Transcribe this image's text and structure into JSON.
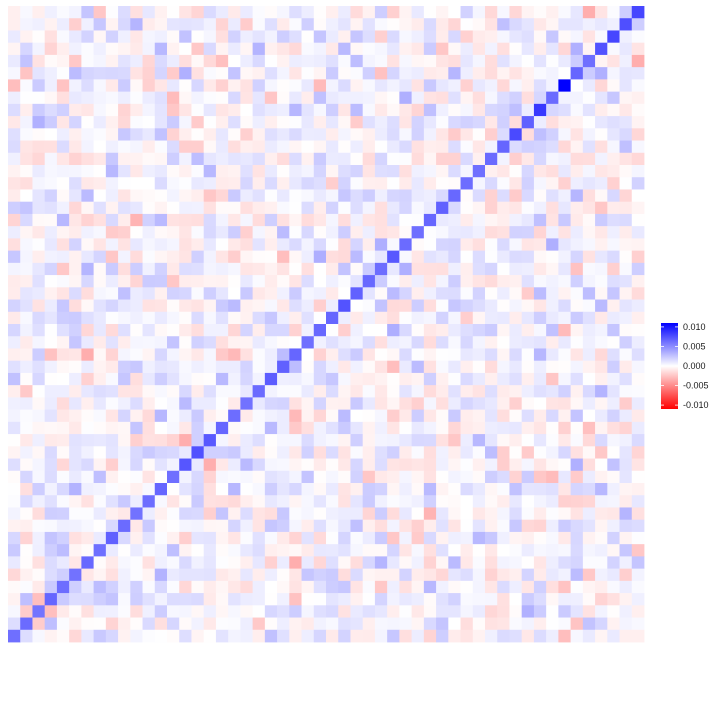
{
  "chart_data": {
    "type": "heatmap",
    "title": "",
    "xlabel": "",
    "ylabel": "",
    "grid": false,
    "rows": 52,
    "cols": 52,
    "value_range": [
      -0.011,
      0.011
    ],
    "diagonal": {
      "typical_value": 0.0062,
      "values": [
        0.0062,
        0.0064,
        0.006,
        0.0066,
        0.0063,
        0.0061,
        0.0065,
        0.0062,
        0.0068,
        0.0064,
        0.0061,
        0.0063,
        0.0066,
        0.0062,
        0.0073,
        0.0075,
        0.0072,
        0.0066,
        0.0063,
        0.0061,
        0.0064,
        0.007,
        0.0068,
        0.0066,
        0.0062,
        0.0065,
        0.0066,
        0.0074,
        0.0068,
        0.0065,
        0.0063,
        0.0072,
        0.0064,
        0.0062,
        0.0066,
        0.0068,
        0.0065,
        0.0063,
        0.0062,
        0.0064,
        0.0066,
        0.0078,
        0.0068,
        0.0086,
        0.0064,
        0.0112,
        0.0066,
        0.0062,
        0.0074,
        0.008,
        0.0076,
        0.008
      ]
    },
    "off_diagonal_range": [
      -0.0035,
      0.0035
    ],
    "legend": {
      "position": "right",
      "colors": {
        "high": "#0000ff",
        "mid": "#ffffff",
        "low": "#ff0000"
      },
      "ticks": [
        {
          "value": 0.01,
          "label": "0.010"
        },
        {
          "value": 0.005,
          "label": "0.005"
        },
        {
          "value": 0.0,
          "label": "0.000"
        },
        {
          "value": -0.005,
          "label": "-0.005"
        },
        {
          "value": -0.01,
          "label": "-0.010"
        }
      ]
    }
  }
}
